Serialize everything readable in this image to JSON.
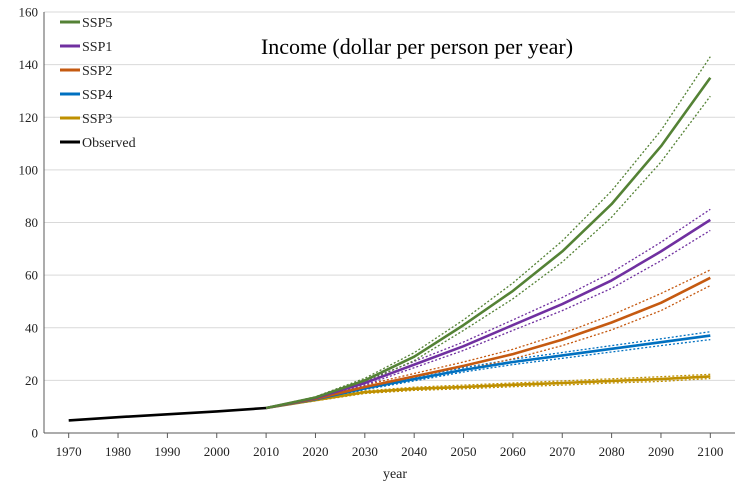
{
  "chart_data": {
    "type": "line",
    "title": "Income (dollar per person per year)",
    "xlabel": "year",
    "ylabel": "",
    "xlim": [
      1965,
      2105
    ],
    "ylim": [
      0,
      160
    ],
    "xticks": [
      1970,
      1980,
      1990,
      2000,
      2010,
      2020,
      2030,
      2040,
      2050,
      2060,
      2070,
      2080,
      2090,
      2100
    ],
    "yticks": [
      0,
      20,
      40,
      60,
      80,
      100,
      120,
      140,
      160
    ],
    "grid": "horizontal",
    "legend_position": "top-left",
    "series": [
      {
        "name": "SSP5",
        "color": "#548235",
        "x": [
          2010,
          2020,
          2030,
          2040,
          2050,
          2060,
          2070,
          2080,
          2090,
          2100
        ],
        "values": [
          9.5,
          13.5,
          20,
          29,
          41,
          54,
          69,
          87,
          109,
          135
        ],
        "upper": [
          9.5,
          13.8,
          20.8,
          30.5,
          43,
          57,
          73,
          92,
          115,
          143
        ],
        "lower": [
          9.5,
          13.2,
          19.2,
          27.5,
          39,
          51,
          65,
          82,
          103,
          128
        ]
      },
      {
        "name": "SSP1",
        "color": "#7030A0",
        "x": [
          2010,
          2020,
          2030,
          2040,
          2050,
          2060,
          2070,
          2080,
          2090,
          2100
        ],
        "values": [
          9.5,
          13.3,
          19,
          26,
          33,
          41,
          49,
          58,
          69,
          81
        ],
        "upper": [
          9.5,
          13.6,
          19.8,
          27.2,
          34.6,
          43,
          51.5,
          61,
          72.5,
          85
        ],
        "lower": [
          9.5,
          13.0,
          18.2,
          24.8,
          31.4,
          39,
          46.5,
          55,
          65.5,
          77
        ]
      },
      {
        "name": "SSP2",
        "color": "#C55A11",
        "x": [
          2010,
          2020,
          2030,
          2040,
          2050,
          2060,
          2070,
          2080,
          2090,
          2100
        ],
        "values": [
          9.5,
          13,
          17.5,
          21.5,
          25.5,
          30,
          35.5,
          42,
          49.5,
          59
        ],
        "upper": [
          9.5,
          13.3,
          18.2,
          22.6,
          27,
          31.8,
          37.8,
          44.8,
          53,
          62
        ],
        "lower": [
          9.5,
          12.7,
          16.8,
          20.4,
          24,
          28.2,
          33.2,
          39.2,
          46.5,
          56
        ]
      },
      {
        "name": "SSP4",
        "color": "#0070C0",
        "x": [
          2010,
          2020,
          2030,
          2040,
          2050,
          2060,
          2070,
          2080,
          2090,
          2100
        ],
        "values": [
          9.5,
          12.8,
          17,
          20.5,
          24,
          27,
          29.5,
          32,
          34.5,
          37
        ],
        "upper": [
          9.5,
          13.0,
          17.5,
          21.2,
          24.8,
          28,
          30.6,
          33.2,
          35.8,
          38.5
        ],
        "lower": [
          9.5,
          12.6,
          16.5,
          19.8,
          23.2,
          26,
          28.4,
          30.8,
          33.2,
          35.5
        ]
      },
      {
        "name": "SSP3",
        "color": "#BF9000",
        "x": [
          2010,
          2020,
          2030,
          2040,
          2050,
          2060,
          2070,
          2080,
          2090,
          2100
        ],
        "values": [
          9.5,
          12.5,
          15.5,
          16.8,
          17.5,
          18.3,
          19,
          19.8,
          20.5,
          21.5
        ],
        "upper": [
          9.5,
          12.8,
          16.0,
          17.4,
          18.2,
          19,
          19.8,
          20.6,
          21.4,
          22.3
        ],
        "lower": [
          9.5,
          12.2,
          15.0,
          16.2,
          16.8,
          17.6,
          18.2,
          19.0,
          19.6,
          20.7
        ]
      },
      {
        "name": "Observed",
        "color": "#000000",
        "x": [
          1970,
          1980,
          1990,
          2000,
          2010
        ],
        "values": [
          4.8,
          6.0,
          7.1,
          8.2,
          9.5
        ]
      }
    ]
  }
}
